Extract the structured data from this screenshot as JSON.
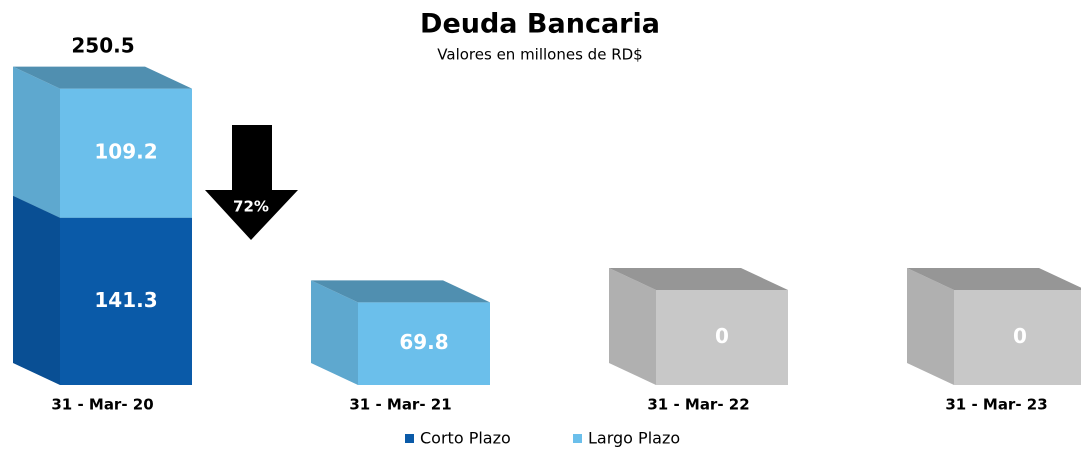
{
  "chart_data": {
    "type": "bar3d_stacked",
    "title": "Deuda Bancaria",
    "subtitle": "Valores en millones de RD$",
    "categories": [
      "31 - Mar- 20",
      "31 - Mar- 21",
      "31 - Mar- 22",
      "31 - Mar- 23"
    ],
    "series": [
      {
        "name": "Corto Plazo",
        "color": "#0a5aa8",
        "values": [
          141.3,
          0,
          0,
          0
        ]
      },
      {
        "name": "Largo Plazo",
        "color": "#6bbfeb",
        "values": [
          109.2,
          69.8,
          0,
          0
        ]
      }
    ],
    "total": 250.5,
    "change": {
      "value": 72,
      "label": "72%"
    },
    "zero_color": "#c8c8c8",
    "ylim": [
      0,
      300
    ],
    "legend": "bottom"
  }
}
